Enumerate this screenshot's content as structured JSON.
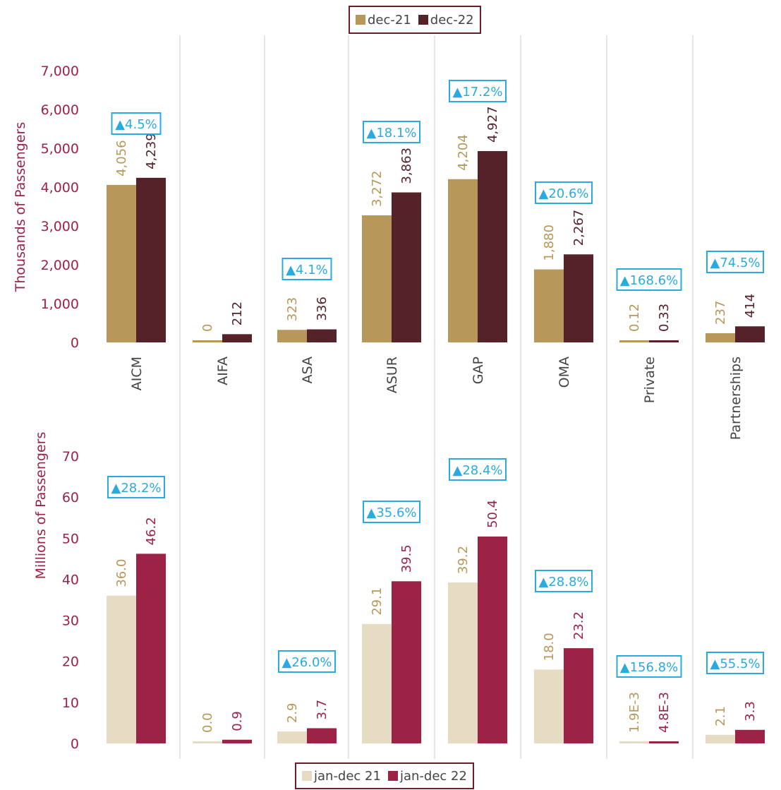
{
  "colors": {
    "dec21": "#b8985a",
    "dec22": "#55222a",
    "jan21": "#e5dcc3",
    "jan22": "#9c2346",
    "axis_text": "#9c2346",
    "label21": "#b8985a",
    "change_box": "#29abe2",
    "divider": "#cccccc"
  },
  "legends": {
    "top": [
      {
        "label": "dec-21",
        "color": "#b8985a"
      },
      {
        "label": "dec-22",
        "color": "#55222a"
      }
    ],
    "bottom": [
      {
        "label": "jan-dec 21",
        "color": "#e5dcc3"
      },
      {
        "label": "jan-dec 22",
        "color": "#9c2346"
      }
    ]
  },
  "chart_data": [
    {
      "type": "bar",
      "ylabel": "Thousands of Passengers",
      "ylim": [
        0,
        7000
      ],
      "yticks": [
        "0",
        "1,000",
        "2,000",
        "3,000",
        "4,000",
        "5,000",
        "6,000",
        "7,000"
      ],
      "categories": [
        "AICM",
        "AIFA",
        "ASA",
        "ASUR",
        "GAP",
        "OMA",
        "Private",
        "Partnerships"
      ],
      "series": [
        {
          "name": "dec-21",
          "values": [
            4056,
            0,
            323,
            3272,
            4204,
            1880,
            0.12,
            237
          ],
          "labels": [
            "4,056",
            "0",
            "323",
            "3,272",
            "4,204",
            "1,880",
            "0.12",
            "237"
          ]
        },
        {
          "name": "dec-22",
          "values": [
            4239,
            212,
            336,
            3863,
            4927,
            2267,
            0.33,
            414
          ],
          "labels": [
            "4,239",
            "212",
            "336",
            "3,863",
            "4,927",
            "2,267",
            "0.33",
            "414"
          ]
        }
      ],
      "changes": [
        "▲4.5%",
        "",
        "▲4.1%",
        "▲18.1%",
        "▲17.2%",
        "▲20.6%",
        "▲168.6%",
        "▲74.5%"
      ]
    },
    {
      "type": "bar",
      "ylabel": "Millions of Passengers",
      "ylim": [
        0,
        70
      ],
      "yticks": [
        "0",
        "10",
        "20",
        "30",
        "40",
        "50",
        "60",
        "70"
      ],
      "categories": [
        "AICM",
        "AIFA",
        "ASA",
        "ASUR",
        "GAP",
        "OMA",
        "Private",
        "Partnerships"
      ],
      "series": [
        {
          "name": "jan-dec 21",
          "values": [
            36.0,
            0.0,
            2.9,
            29.1,
            39.2,
            18.0,
            0.0019,
            2.1
          ],
          "labels": [
            "36.0",
            "0.0",
            "2.9",
            "29.1",
            "39.2",
            "18.0",
            "1.9E-3",
            "2.1"
          ]
        },
        {
          "name": "jan-dec 22",
          "values": [
            46.2,
            0.9,
            3.7,
            39.5,
            50.4,
            23.2,
            0.0048,
            3.3
          ],
          "labels": [
            "46.2",
            "0.9",
            "3.7",
            "39.5",
            "50.4",
            "23.2",
            "4.8E-3",
            "3.3"
          ]
        }
      ],
      "changes": [
        "▲28.2%",
        "",
        "▲26.0%",
        "▲35.6%",
        "▲28.4%",
        "▲28.8%",
        "▲156.8%",
        "▲55.5%"
      ]
    }
  ]
}
